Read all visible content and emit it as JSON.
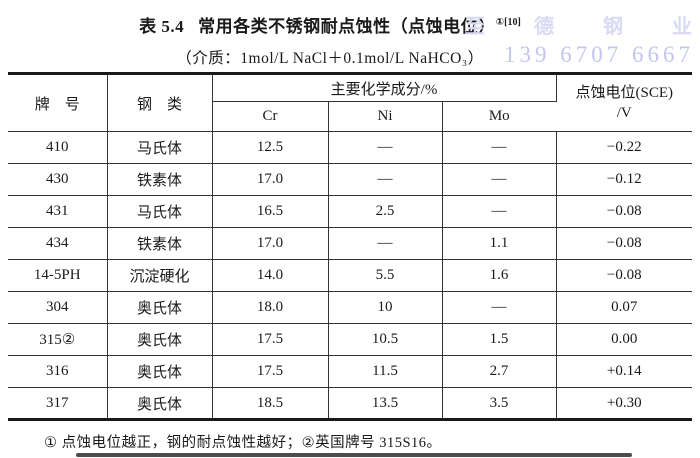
{
  "title": {
    "prefix": "表 5.4",
    "main": "常用各类不锈钢耐点蚀性（点蚀电位）",
    "sup": "①[10]",
    "subtitle": "（介质：1mol/L NaCl＋0.1mol/L NaHCO₃）"
  },
  "watermark": {
    "line1": "至 德 钢 业",
    "line2": "139 6707 6667",
    "color_line1": "#d9daf3",
    "color_line2": "#c3c7ee"
  },
  "table": {
    "headers": {
      "grade": "牌　号",
      "steel_type": "钢　类",
      "composition_group": "主要化学成分/%",
      "sub_columns": [
        "Cr",
        "Ni",
        "Mo"
      ],
      "potential_line1": "点蚀电位(SCE)",
      "potential_line2": "/V"
    },
    "column_keys": [
      "grade",
      "steel_type",
      "cr",
      "ni",
      "mo",
      "potential"
    ],
    "rows": [
      [
        "410",
        "马氏体",
        "12.5",
        "—",
        "—",
        "−0.22"
      ],
      [
        "430",
        "铁素体",
        "17.0",
        "—",
        "—",
        "−0.12"
      ],
      [
        "431",
        "马氏体",
        "16.5",
        "2.5",
        "—",
        "−0.08"
      ],
      [
        "434",
        "铁素体",
        "17.0",
        "—",
        "1.1",
        "−0.08"
      ],
      [
        "14-5PH",
        "沉淀硬化",
        "14.0",
        "5.5",
        "1.6",
        "−0.08"
      ],
      [
        "304",
        "奥氏体",
        "18.0",
        "10",
        "—",
        "0.07"
      ],
      [
        "315②",
        "奥氏体",
        "17.5",
        "10.5",
        "1.5",
        "0.00"
      ],
      [
        "316",
        "奥氏体",
        "17.5",
        "11.5",
        "2.7",
        "+0.14"
      ],
      [
        "317",
        "奥氏体",
        "18.5",
        "13.5",
        "3.5",
        "+0.30"
      ]
    ]
  },
  "footnote": "① 点蚀电位越正，钢的耐点蚀性越好；②英国牌号 315S16。"
}
